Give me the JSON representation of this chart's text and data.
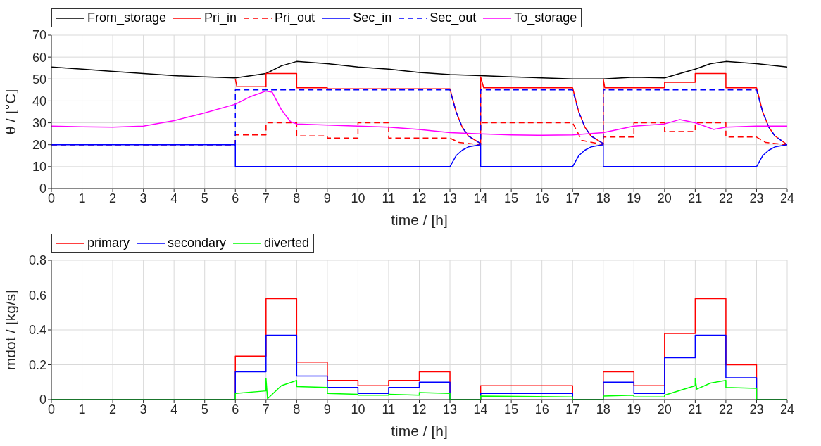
{
  "chart_data": [
    {
      "type": "line",
      "xlabel": "time / [h]",
      "ylabel": "θ / [°C]",
      "xlim": [
        0,
        24
      ],
      "xticks": [
        0,
        1,
        2,
        3,
        4,
        5,
        6,
        7,
        8,
        9,
        10,
        11,
        12,
        13,
        14,
        15,
        16,
        17,
        18,
        19,
        20,
        21,
        22,
        23,
        24
      ],
      "ylim": [
        0,
        70
      ],
      "yticks": [
        0,
        10,
        20,
        30,
        40,
        50,
        60,
        70
      ],
      "grid": true,
      "legend": "top left",
      "series": [
        {
          "name": "From_storage",
          "color": "#000000",
          "line_style": "solid",
          "x": [
            0,
            1,
            2,
            3,
            4,
            5,
            6,
            7,
            7.5,
            8,
            9,
            10,
            11,
            12,
            13,
            14,
            15,
            16,
            17,
            18,
            19,
            20,
            21,
            21.5,
            22,
            23,
            24
          ],
          "values": [
            55.5,
            54.5,
            53.5,
            52.5,
            51.5,
            51,
            50.5,
            52.5,
            56,
            58,
            57,
            55.5,
            54.5,
            53,
            52,
            51.5,
            51,
            50.5,
            50,
            50,
            50.8,
            50.5,
            54.5,
            57,
            58,
            57,
            55.5
          ]
        },
        {
          "name": "Pri_in",
          "color": "#ff0000",
          "line_style": "solid",
          "x": [
            6,
            6.05,
            7,
            7,
            8,
            8,
            9,
            9,
            13,
            13.2,
            13.4,
            13.6,
            14,
            14,
            14.1,
            17,
            17.2,
            17.4,
            17.6,
            18,
            18,
            18.05,
            20,
            20,
            21,
            21,
            22,
            22,
            23,
            23.2,
            23.4,
            23.6,
            24
          ],
          "values": [
            50,
            46.5,
            46.5,
            52.5,
            52.5,
            46,
            46,
            45.5,
            45.5,
            35,
            28,
            24,
            20.5,
            51,
            46,
            46,
            35,
            28,
            24,
            20.5,
            50,
            46,
            46,
            48.5,
            48.5,
            52.5,
            52.5,
            46,
            46,
            35,
            28,
            24,
            20
          ]
        },
        {
          "name": "Pri_out",
          "color": "#ff0000",
          "line_style": "dashed",
          "x": [
            0,
            6,
            6,
            7,
            7,
            8,
            8,
            9,
            9,
            10,
            10,
            11,
            11,
            13,
            13.3,
            14,
            14,
            17,
            17.3,
            18,
            18,
            19,
            19,
            20,
            20,
            21,
            21,
            22,
            22,
            23,
            23.3,
            24
          ],
          "values": [
            20,
            20,
            24.5,
            24.5,
            30,
            30,
            24,
            24,
            23,
            23,
            30,
            30,
            23,
            23,
            21,
            20,
            30,
            30,
            22,
            20,
            23.5,
            23.5,
            30,
            30,
            26,
            26,
            30,
            30,
            23.5,
            23.5,
            21,
            20
          ]
        },
        {
          "name": "Sec_in",
          "color": "#0000ff",
          "line_style": "solid",
          "x": [
            0,
            6,
            6,
            13,
            13.2,
            13.4,
            13.6,
            14,
            14,
            17,
            17.2,
            17.4,
            17.6,
            18,
            18,
            23,
            23.2,
            23.4,
            23.6,
            24
          ],
          "values": [
            20,
            20,
            10,
            10,
            15,
            17.5,
            19,
            20,
            10,
            10,
            15,
            17.5,
            19,
            20,
            10,
            10,
            15,
            17.5,
            19,
            20
          ]
        },
        {
          "name": "Sec_out",
          "color": "#0000ff",
          "line_style": "dashed",
          "x": [
            0,
            6,
            6,
            13,
            13.2,
            13.4,
            13.6,
            14,
            14,
            17,
            17.2,
            17.4,
            17.6,
            18,
            18,
            23,
            23.2,
            23.4,
            23.6,
            24
          ],
          "values": [
            20,
            20,
            45,
            45,
            35,
            28,
            24,
            20.5,
            45,
            45,
            35,
            28,
            24,
            20.5,
            45,
            45,
            35,
            28,
            24,
            20
          ]
        },
        {
          "name": "To_storage",
          "color": "#ff00ff",
          "line_style": "solid",
          "x": [
            0,
            1,
            2,
            3,
            4,
            5,
            6,
            6.5,
            7,
            7.2,
            7.5,
            7.8,
            8,
            9,
            10,
            11,
            12,
            13,
            14,
            15,
            16,
            17,
            18,
            19,
            20,
            20.5,
            21,
            21.6,
            22,
            23,
            24
          ],
          "values": [
            28.5,
            28.2,
            28,
            28.5,
            31,
            34.5,
            38.5,
            42,
            44.5,
            44,
            36,
            30.5,
            29.5,
            29,
            28.5,
            28,
            27,
            25.5,
            25,
            24.5,
            24.3,
            24.5,
            25.5,
            28.5,
            29.5,
            31.5,
            30,
            27,
            28,
            28.5,
            28.5
          ]
        }
      ]
    },
    {
      "type": "line",
      "xlabel": "time / [h]",
      "ylabel": "mdot / [kg/s]",
      "xlim": [
        0,
        24
      ],
      "xticks": [
        0,
        1,
        2,
        3,
        4,
        5,
        6,
        7,
        8,
        9,
        10,
        11,
        12,
        13,
        14,
        15,
        16,
        17,
        18,
        19,
        20,
        21,
        22,
        23,
        24
      ],
      "ylim": [
        0,
        0.8
      ],
      "yticks": [
        0,
        0.2,
        0.4,
        0.6,
        0.8
      ],
      "grid": true,
      "legend": "top left",
      "series": [
        {
          "name": "primary",
          "color": "#ff0000",
          "line_style": "solid",
          "x": [
            0,
            6,
            6,
            7,
            7,
            8,
            8,
            9,
            9,
            10,
            10,
            11,
            11,
            12,
            12,
            13,
            13,
            14,
            14,
            17,
            17,
            18,
            18,
            19,
            19,
            20,
            20,
            21,
            21,
            22,
            22,
            23,
            23,
            24
          ],
          "values": [
            0,
            0,
            0.25,
            0.25,
            0.58,
            0.58,
            0.215,
            0.215,
            0.11,
            0.11,
            0.08,
            0.08,
            0.11,
            0.11,
            0.16,
            0.16,
            0,
            0,
            0.08,
            0.08,
            0,
            0,
            0.16,
            0.16,
            0.08,
            0.08,
            0.38,
            0.38,
            0.58,
            0.58,
            0.2,
            0.2,
            0,
            0
          ]
        },
        {
          "name": "secondary",
          "color": "#0000ff",
          "line_style": "solid",
          "x": [
            0,
            6,
            6,
            7,
            7,
            8,
            8,
            9,
            9,
            10,
            10,
            11,
            11,
            12,
            12,
            13,
            13,
            14,
            14,
            17,
            17,
            18,
            18,
            19,
            19,
            20,
            20,
            21,
            21,
            22,
            22,
            23,
            23,
            24
          ],
          "values": [
            0,
            0,
            0.16,
            0.16,
            0.37,
            0.37,
            0.135,
            0.135,
            0.07,
            0.07,
            0.035,
            0.035,
            0.07,
            0.07,
            0.1,
            0.1,
            0,
            0,
            0.035,
            0.035,
            0,
            0,
            0.1,
            0.1,
            0.035,
            0.035,
            0.24,
            0.24,
            0.37,
            0.37,
            0.125,
            0.125,
            0,
            0
          ]
        },
        {
          "name": "diverted",
          "color": "#00ff00",
          "line_style": "solid",
          "x": [
            0,
            6,
            6,
            7,
            7,
            7.05,
            7.5,
            8,
            8,
            9,
            9,
            10,
            10,
            11,
            11,
            12,
            12,
            13,
            13,
            14,
            14,
            17,
            17,
            18,
            18,
            19,
            19,
            20,
            20,
            21,
            21,
            21.05,
            21.5,
            22,
            22,
            23,
            23,
            24
          ],
          "values": [
            0,
            0,
            0.035,
            0.05,
            0.12,
            0.005,
            0.08,
            0.11,
            0.075,
            0.07,
            0.035,
            0.03,
            0.025,
            0.025,
            0.03,
            0.025,
            0.04,
            0.035,
            0,
            0,
            0.02,
            0.015,
            0,
            0,
            0.02,
            0.025,
            0.015,
            0.015,
            0.025,
            0.08,
            0.12,
            0.06,
            0.095,
            0.11,
            0.07,
            0.065,
            0,
            0
          ]
        }
      ]
    }
  ]
}
